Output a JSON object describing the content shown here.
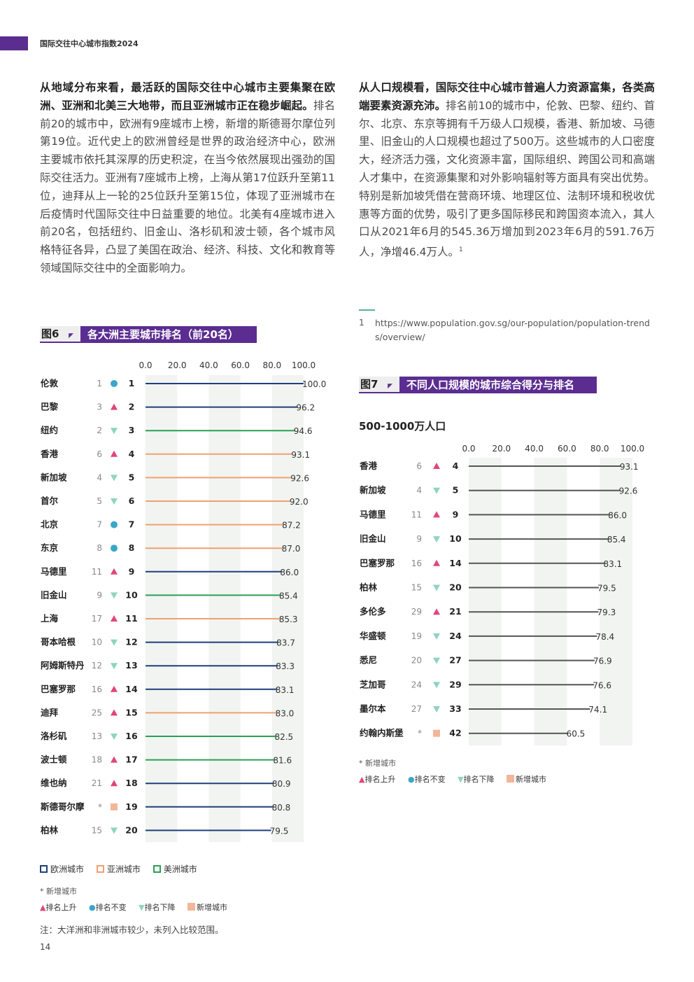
{
  "header": {
    "title": "国际交往中心城市指数2024"
  },
  "left_paragraph": {
    "bold": "从地域分布来看，最活跃的国际交往中心城市主要集聚在欧洲、亚洲和北美三大地带，而且亚洲城市正在稳步崛起。",
    "text": "排名前20的城市中，欧洲有9座城市上榜，新增的斯德哥尔摩位列第19位。近代史上的欧洲曾经是世界的政治经济中心，欧洲主要城市依托其深厚的历史积淀，在当今依然展现出强劲的国际交往活力。亚洲有7座城市上榜，上海从第17位跃升至第11位，迪拜从上一轮的25位跃升至第15位，体现了亚洲城市在后疫情时代国际交往中日益重要的地位。北美有4座城市进入前20名，包括纽约、旧金山、洛杉矶和波士顿，各个城市风格特征各异，凸显了美国在政治、经济、科技、文化和教育等领域国际交往中的全面影响力。"
  },
  "right_paragraph": {
    "bold": "从人口规模看，国际交往中心城市普遍人力资源富集，各类高端要素资源充沛。",
    "text": "排名前10的城市中，伦敦、巴黎、纽约、首尔、北京、东京等拥有千万级人口规模，香港、新加坡、马德里、旧金山的人口规模也超过了500万。这些城市的人口密度大，经济活力强，文化资源丰富，国际组织、跨国公司和高端人才集中，在资源集聚和对外影响辐射等方面具有突出优势。特别是新加坡凭借在营商环境、地理区位、法制环境和税收优惠等方面的优势，吸引了更多国际移民和跨国资本流入，其人口从2021年6月的545.36万增加到2023年6月的591.76万人，净增46.4万人。",
    "footnote_mark": "1"
  },
  "footnote": {
    "number": "1",
    "text": "https://www.population.gov.sg/our-population/population-trends/overview/"
  },
  "fig6": {
    "label": "图6",
    "title": "各大洲主要城市排名（前20名）"
  },
  "fig7": {
    "label": "图7",
    "title": "不同人口规模的城市综合得分与排名",
    "subtitle": "500-1000万人口"
  },
  "colors": {
    "europe": "#1f3f7a",
    "asia": "#f0a070",
    "america": "#2aa055",
    "neutral": "#555555",
    "up": "#e0457b",
    "same": "#3aa6c8",
    "down": "#8fd3c3",
    "new": "#f2b69a",
    "accent": "#5b2d91",
    "band": "#f1f4f1"
  },
  "chart_data": [
    {
      "type": "bar",
      "title": "各大洲主要城市排名（前20名）",
      "xlim": [
        0,
        100
      ],
      "ticks": [
        "0.0",
        "20.0",
        "40.0",
        "60.0",
        "80.0",
        "100.0"
      ],
      "legend": [
        "欧洲城市",
        "亚洲城市",
        "美洲城市"
      ],
      "rows": [
        {
          "city": "伦敦",
          "prev": "1",
          "status": "same",
          "rank": 1,
          "value": 100.0,
          "label": "100.0",
          "region": "europe"
        },
        {
          "city": "巴黎",
          "prev": "3",
          "status": "up",
          "rank": 2,
          "value": 96.2,
          "label": "96.2",
          "region": "europe"
        },
        {
          "city": "纽约",
          "prev": "2",
          "status": "down",
          "rank": 3,
          "value": 94.6,
          "label": "94.6",
          "region": "america"
        },
        {
          "city": "香港",
          "prev": "6",
          "status": "up",
          "rank": 4,
          "value": 93.1,
          "label": "93.1",
          "region": "asia"
        },
        {
          "city": "新加坡",
          "prev": "4",
          "status": "down",
          "rank": 5,
          "value": 92.6,
          "label": "92.6",
          "region": "asia"
        },
        {
          "city": "首尔",
          "prev": "5",
          "status": "down",
          "rank": 6,
          "value": 92.0,
          "label": "92.0",
          "region": "asia"
        },
        {
          "city": "北京",
          "prev": "7",
          "status": "same",
          "rank": 7,
          "value": 87.2,
          "label": "87.2",
          "region": "asia"
        },
        {
          "city": "东京",
          "prev": "8",
          "status": "same",
          "rank": 8,
          "value": 87.0,
          "label": "87.0",
          "region": "asia"
        },
        {
          "city": "马德里",
          "prev": "11",
          "status": "up",
          "rank": 9,
          "value": 86.0,
          "label": "86.0",
          "region": "europe"
        },
        {
          "city": "旧金山",
          "prev": "9",
          "status": "down",
          "rank": 10,
          "value": 85.4,
          "label": "85.4",
          "region": "america"
        },
        {
          "city": "上海",
          "prev": "17",
          "status": "up",
          "rank": 11,
          "value": 85.3,
          "label": "85.3",
          "region": "asia"
        },
        {
          "city": "哥本哈根",
          "prev": "10",
          "status": "down",
          "rank": 12,
          "value": 83.7,
          "label": "83.7",
          "region": "europe"
        },
        {
          "city": "阿姆斯特丹",
          "prev": "12",
          "status": "down",
          "rank": 13,
          "value": 83.3,
          "label": "83.3",
          "region": "europe"
        },
        {
          "city": "巴塞罗那",
          "prev": "16",
          "status": "up",
          "rank": 14,
          "value": 83.1,
          "label": "83.1",
          "region": "europe"
        },
        {
          "city": "迪拜",
          "prev": "25",
          "status": "up",
          "rank": 15,
          "value": 83.0,
          "label": "83.0",
          "region": "asia"
        },
        {
          "city": "洛杉矶",
          "prev": "13",
          "status": "down",
          "rank": 16,
          "value": 82.5,
          "label": "82.5",
          "region": "america"
        },
        {
          "city": "波士顿",
          "prev": "18",
          "status": "up",
          "rank": 17,
          "value": 81.6,
          "label": "81.6",
          "region": "america"
        },
        {
          "city": "维也纳",
          "prev": "21",
          "status": "up",
          "rank": 18,
          "value": 80.9,
          "label": "80.9",
          "region": "europe"
        },
        {
          "city": "斯德哥尔摩",
          "prev": "*",
          "status": "new",
          "rank": 19,
          "value": 80.8,
          "label": "80.8",
          "region": "europe"
        },
        {
          "city": "柏林",
          "prev": "15",
          "status": "down",
          "rank": 20,
          "value": 79.5,
          "label": "79.5",
          "region": "europe"
        }
      ]
    },
    {
      "type": "bar",
      "title": "不同人口规模的城市综合得分与排名",
      "subtitle": "500-1000万人口",
      "xlim": [
        0,
        100
      ],
      "ticks": [
        "0.0",
        "20.0",
        "40.0",
        "60.0",
        "80.0",
        "100.0"
      ],
      "rows": [
        {
          "city": "香港",
          "prev": "6",
          "status": "up",
          "rank": 4,
          "value": 93.1,
          "label": "93.1"
        },
        {
          "city": "新加坡",
          "prev": "4",
          "status": "down",
          "rank": 5,
          "value": 92.6,
          "label": "92.6"
        },
        {
          "city": "马德里",
          "prev": "11",
          "status": "up",
          "rank": 9,
          "value": 86.0,
          "label": "86.0"
        },
        {
          "city": "旧金山",
          "prev": "9",
          "status": "down",
          "rank": 10,
          "value": 85.4,
          "label": "85.4"
        },
        {
          "city": "巴塞罗那",
          "prev": "16",
          "status": "up",
          "rank": 14,
          "value": 83.1,
          "label": "83.1"
        },
        {
          "city": "柏林",
          "prev": "15",
          "status": "down",
          "rank": 20,
          "value": 79.5,
          "label": "79.5"
        },
        {
          "city": "多伦多",
          "prev": "29",
          "status": "up",
          "rank": 21,
          "value": 79.3,
          "label": "79.3"
        },
        {
          "city": "华盛顿",
          "prev": "19",
          "status": "down",
          "rank": 24,
          "value": 78.4,
          "label": "78.4"
        },
        {
          "city": "悉尼",
          "prev": "20",
          "status": "down",
          "rank": 27,
          "value": 76.9,
          "label": "76.9"
        },
        {
          "city": "芝加哥",
          "prev": "24",
          "status": "down",
          "rank": 29,
          "value": 76.6,
          "label": "76.6"
        },
        {
          "city": "墨尔本",
          "prev": "27",
          "status": "down",
          "rank": 33,
          "value": 74.1,
          "label": "74.1"
        },
        {
          "city": "约翰内斯堡",
          "prev": "*",
          "status": "new",
          "rank": 42,
          "value": 60.5,
          "label": "60.5"
        }
      ]
    }
  ],
  "legend_regions": {
    "europe": "欧洲城市",
    "asia": "亚洲城市",
    "america": "美洲城市"
  },
  "legend_note": "* 新增城市",
  "legend_symbols": {
    "up": "排名上升",
    "same": "排名不变",
    "down": "排名下降",
    "new": "新增城市"
  },
  "remark": "注：大洋洲和非洲城市较少，未列入比较范围。",
  "page_number": "14"
}
